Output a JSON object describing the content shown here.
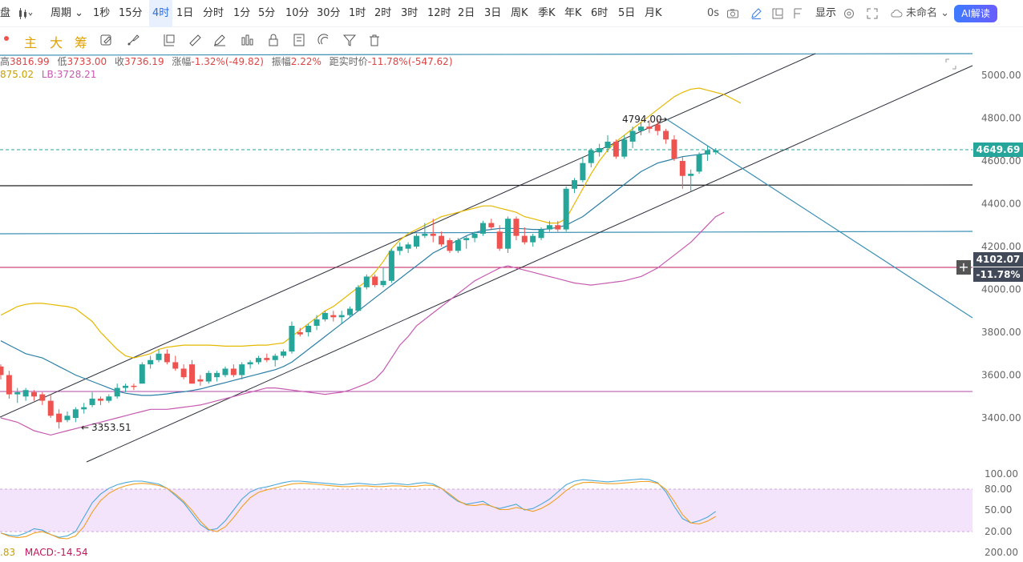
{
  "toolbar": {
    "left_partial": "盘",
    "period_label": "周期",
    "periods": [
      "1秒",
      "15分",
      "4时",
      "1日",
      "分时",
      "1分",
      "5分",
      "10分",
      "30分",
      "1时",
      "2时",
      "3时",
      "12时",
      "2日",
      "3日",
      "周K",
      "季K",
      "年K",
      "6时",
      "5日",
      "月K"
    ],
    "active_period": "4时",
    "latency": "0s",
    "display_label": "显示",
    "unnamed_label": "未命名",
    "ai_label": "AI解读"
  },
  "drawbar": {
    "main_chars": [
      "主",
      "大",
      "筹"
    ]
  },
  "ohlc": {
    "high_label": "高",
    "high": "3816.99",
    "low_label": "低",
    "low": "3733.00",
    "close_label": "收",
    "close": "3736.19",
    "change_label": "涨幅",
    "change": "-1.32%(-49.82)",
    "amplitude_label": "振幅",
    "amplitude": "2.22%",
    "dist_label": "距实时价",
    "dist": "-11.78%(-547.62)"
  },
  "boll": {
    "ub": "875.02",
    "lb": "LB:3728.21"
  },
  "macd": {
    "left": ".83",
    "value": "MACD:-14.54"
  },
  "annotations": {
    "high_mark": "4794.00",
    "low_mark": "3353.51"
  },
  "price_axis": {
    "ticks": [
      "5000.00",
      "4800.00",
      "4600.00",
      "4400.00",
      "4200.00",
      "4000.00",
      "3800.00",
      "3600.00",
      "3400.00"
    ],
    "current_price": "4649.69",
    "cursor_price": "4102.07",
    "cursor_pct": "-11.78%"
  },
  "indicator_axis": {
    "ticks": [
      "100.00",
      "80.00",
      "50.00",
      "20.00",
      "200.00"
    ]
  },
  "colors": {
    "up": "#26a69a",
    "down": "#ef5350",
    "ma_yellow": "#e6b800",
    "ma_blue": "#2b7fa6",
    "ma_pink": "#c65ab0",
    "channel": "#2b2e3a",
    "current_price_bg": "#26a69a",
    "cursor_bg": "#424a5a"
  },
  "chart_data": {
    "type": "candlestick",
    "price_range": [
      3300,
      5100
    ],
    "candles": [
      {
        "o": 3640,
        "h": 3650,
        "l": 3580,
        "c": 3600
      },
      {
        "o": 3600,
        "h": 3620,
        "l": 3490,
        "c": 3510
      },
      {
        "o": 3510,
        "h": 3540,
        "l": 3470,
        "c": 3520
      },
      {
        "o": 3500,
        "h": 3540,
        "l": 3480,
        "c": 3530
      },
      {
        "o": 3520,
        "h": 3530,
        "l": 3480,
        "c": 3500
      },
      {
        "o": 3510,
        "h": 3520,
        "l": 3460,
        "c": 3480
      },
      {
        "o": 3480,
        "h": 3510,
        "l": 3400,
        "c": 3410
      },
      {
        "o": 3420,
        "h": 3440,
        "l": 3350,
        "c": 3380
      },
      {
        "o": 3390,
        "h": 3430,
        "l": 3380,
        "c": 3410
      },
      {
        "o": 3400,
        "h": 3450,
        "l": 3380,
        "c": 3440
      },
      {
        "o": 3440,
        "h": 3470,
        "l": 3420,
        "c": 3450
      },
      {
        "o": 3460,
        "h": 3520,
        "l": 3450,
        "c": 3490
      },
      {
        "o": 3490,
        "h": 3500,
        "l": 3460,
        "c": 3480
      },
      {
        "o": 3480,
        "h": 3510,
        "l": 3470,
        "c": 3500
      },
      {
        "o": 3500,
        "h": 3560,
        "l": 3490,
        "c": 3540
      },
      {
        "o": 3540,
        "h": 3560,
        "l": 3520,
        "c": 3550
      },
      {
        "o": 3550,
        "h": 3560,
        "l": 3530,
        "c": 3545
      },
      {
        "o": 3560,
        "h": 3660,
        "l": 3560,
        "c": 3650
      },
      {
        "o": 3650,
        "h": 3690,
        "l": 3630,
        "c": 3670
      },
      {
        "o": 3670,
        "h": 3720,
        "l": 3660,
        "c": 3700
      },
      {
        "o": 3700,
        "h": 3720,
        "l": 3650,
        "c": 3660
      },
      {
        "o": 3660,
        "h": 3690,
        "l": 3620,
        "c": 3630
      },
      {
        "o": 3630,
        "h": 3650,
        "l": 3580,
        "c": 3590
      },
      {
        "o": 3650,
        "h": 3670,
        "l": 3560,
        "c": 3560
      },
      {
        "o": 3580,
        "h": 3600,
        "l": 3550,
        "c": 3570
      },
      {
        "o": 3570,
        "h": 3620,
        "l": 3560,
        "c": 3610
      },
      {
        "o": 3590,
        "h": 3620,
        "l": 3570,
        "c": 3610
      },
      {
        "o": 3600,
        "h": 3640,
        "l": 3590,
        "c": 3630
      },
      {
        "o": 3630,
        "h": 3650,
        "l": 3590,
        "c": 3600
      },
      {
        "o": 3600,
        "h": 3660,
        "l": 3580,
        "c": 3650
      },
      {
        "o": 3650,
        "h": 3670,
        "l": 3630,
        "c": 3660
      },
      {
        "o": 3660,
        "h": 3690,
        "l": 3650,
        "c": 3680
      },
      {
        "o": 3680,
        "h": 3700,
        "l": 3660,
        "c": 3670
      },
      {
        "o": 3670,
        "h": 3700,
        "l": 3640,
        "c": 3690
      },
      {
        "o": 3690,
        "h": 3720,
        "l": 3680,
        "c": 3710
      },
      {
        "o": 3710,
        "h": 3850,
        "l": 3700,
        "c": 3830
      },
      {
        "o": 3800,
        "h": 3820,
        "l": 3780,
        "c": 3790
      },
      {
        "o": 3800,
        "h": 3840,
        "l": 3780,
        "c": 3830
      },
      {
        "o": 3830,
        "h": 3880,
        "l": 3810,
        "c": 3860
      },
      {
        "o": 3860,
        "h": 3900,
        "l": 3850,
        "c": 3890
      },
      {
        "o": 3880,
        "h": 3900,
        "l": 3850,
        "c": 3870
      },
      {
        "o": 3870,
        "h": 3900,
        "l": 3840,
        "c": 3880
      },
      {
        "o": 3880,
        "h": 3920,
        "l": 3870,
        "c": 3910
      },
      {
        "o": 3900,
        "h": 4020,
        "l": 3900,
        "c": 4010
      },
      {
        "o": 4010,
        "h": 4070,
        "l": 4000,
        "c": 4060
      },
      {
        "o": 4060,
        "h": 4070,
        "l": 4010,
        "c": 4020
      },
      {
        "o": 4020,
        "h": 4100,
        "l": 4010,
        "c": 4040
      },
      {
        "o": 4040,
        "h": 4190,
        "l": 4030,
        "c": 4180
      },
      {
        "o": 4180,
        "h": 4220,
        "l": 4160,
        "c": 4200
      },
      {
        "o": 4190,
        "h": 4220,
        "l": 4170,
        "c": 4210
      },
      {
        "o": 4200,
        "h": 4260,
        "l": 4190,
        "c": 4250
      },
      {
        "o": 4250,
        "h": 4310,
        "l": 4240,
        "c": 4260
      },
      {
        "o": 4260,
        "h": 4330,
        "l": 4220,
        "c": 4250
      },
      {
        "o": 4250,
        "h": 4270,
        "l": 4200,
        "c": 4210
      },
      {
        "o": 4230,
        "h": 4240,
        "l": 4170,
        "c": 4180
      },
      {
        "o": 4180,
        "h": 4240,
        "l": 4170,
        "c": 4230
      },
      {
        "o": 4230,
        "h": 4250,
        "l": 4190,
        "c": 4240
      },
      {
        "o": 4240,
        "h": 4270,
        "l": 4220,
        "c": 4260
      },
      {
        "o": 4260,
        "h": 4320,
        "l": 4250,
        "c": 4310
      },
      {
        "o": 4310,
        "h": 4330,
        "l": 4280,
        "c": 4290
      },
      {
        "o": 4270,
        "h": 4300,
        "l": 4180,
        "c": 4190
      },
      {
        "o": 4190,
        "h": 4340,
        "l": 4170,
        "c": 4330
      },
      {
        "o": 4330,
        "h": 4340,
        "l": 4230,
        "c": 4250
      },
      {
        "o": 4250,
        "h": 4290,
        "l": 4210,
        "c": 4220
      },
      {
        "o": 4220,
        "h": 4260,
        "l": 4200,
        "c": 4250
      },
      {
        "o": 4240,
        "h": 4290,
        "l": 4230,
        "c": 4280
      },
      {
        "o": 4280,
        "h": 4320,
        "l": 4270,
        "c": 4300
      },
      {
        "o": 4300,
        "h": 4320,
        "l": 4270,
        "c": 4280
      },
      {
        "o": 4280,
        "h": 4480,
        "l": 4270,
        "c": 4470
      },
      {
        "o": 4470,
        "h": 4520,
        "l": 4450,
        "c": 4510
      },
      {
        "o": 4510,
        "h": 4620,
        "l": 4500,
        "c": 4590
      },
      {
        "o": 4590,
        "h": 4660,
        "l": 4570,
        "c": 4650
      },
      {
        "o": 4640,
        "h": 4680,
        "l": 4620,
        "c": 4660
      },
      {
        "o": 4660,
        "h": 4720,
        "l": 4640,
        "c": 4690
      },
      {
        "o": 4690,
        "h": 4700,
        "l": 4610,
        "c": 4620
      },
      {
        "o": 4620,
        "h": 4720,
        "l": 4610,
        "c": 4700
      },
      {
        "o": 4690,
        "h": 4760,
        "l": 4660,
        "c": 4740
      },
      {
        "o": 4740,
        "h": 4780,
        "l": 4720,
        "c": 4760
      },
      {
        "o": 4760,
        "h": 4790,
        "l": 4730,
        "c": 4750
      },
      {
        "o": 4770,
        "h": 4794,
        "l": 4720,
        "c": 4740
      },
      {
        "o": 4740,
        "h": 4750,
        "l": 4680,
        "c": 4700
      },
      {
        "o": 4700,
        "h": 4720,
        "l": 4600,
        "c": 4610
      },
      {
        "o": 4600,
        "h": 4620,
        "l": 4470,
        "c": 4530
      },
      {
        "o": 4530,
        "h": 4560,
        "l": 4460,
        "c": 4540
      },
      {
        "o": 4550,
        "h": 4640,
        "l": 4540,
        "c": 4630
      },
      {
        "o": 4630,
        "h": 4670,
        "l": 4600,
        "c": 4650
      },
      {
        "o": 4640,
        "h": 4660,
        "l": 4630,
        "c": 4650
      }
    ],
    "ma_yellow": [
      3880,
      3900,
      3920,
      3930,
      3935,
      3935,
      3930,
      3925,
      3920,
      3910,
      3880,
      3850,
      3800,
      3760,
      3720,
      3690,
      3680,
      3690,
      3700,
      3720,
      3730,
      3735,
      3740,
      3740,
      3740,
      3740,
      3738,
      3735,
      3735,
      3735,
      3738,
      3740,
      3740,
      3745,
      3750,
      3780,
      3810,
      3840,
      3870,
      3900,
      3920,
      3950,
      3980,
      4010,
      4040,
      4080,
      4130,
      4190,
      4230,
      4260,
      4280,
      4300,
      4320,
      4340,
      4350,
      4360,
      4370,
      4380,
      4390,
      4390,
      4380,
      4370,
      4360,
      4340,
      4330,
      4320,
      4310,
      4310,
      4330,
      4400,
      4470,
      4540,
      4600,
      4650,
      4690,
      4720,
      4750,
      4780,
      4810,
      4840,
      4870,
      4900,
      4920,
      4935,
      4940,
      4930,
      4920,
      4910,
      4890,
      4870
    ],
    "ma_blue": [
      3760,
      3740,
      3720,
      3700,
      3690,
      3680,
      3660,
      3640,
      3620,
      3600,
      3585,
      3570,
      3555,
      3540,
      3525,
      3515,
      3510,
      3505,
      3505,
      3508,
      3512,
      3518,
      3522,
      3528,
      3535,
      3545,
      3555,
      3565,
      3575,
      3585,
      3595,
      3605,
      3615,
      3625,
      3640,
      3660,
      3690,
      3720,
      3750,
      3780,
      3810,
      3840,
      3870,
      3900,
      3930,
      3960,
      3990,
      4020,
      4050,
      4080,
      4110,
      4140,
      4170,
      4190,
      4210,
      4230,
      4250,
      4265,
      4275,
      4280,
      4285,
      4285,
      4285,
      4283,
      4280,
      4280,
      4283,
      4290,
      4300,
      4320,
      4340,
      4370,
      4400,
      4430,
      4460,
      4490,
      4520,
      4550,
      4570,
      4590,
      4600,
      4610,
      4620,
      4625,
      4630,
      4635
    ],
    "ma_pink": [
      3400,
      3390,
      3380,
      3360,
      3340,
      3330,
      3320,
      3330,
      3340,
      3350,
      3360,
      3370,
      3380,
      3390,
      3400,
      3410,
      3420,
      3430,
      3440,
      3440,
      3440,
      3445,
      3450,
      3455,
      3460,
      3470,
      3480,
      3490,
      3500,
      3510,
      3520,
      3530,
      3540,
      3540,
      3535,
      3530,
      3525,
      3520,
      3515,
      3510,
      3515,
      3520,
      3530,
      3545,
      3560,
      3580,
      3620,
      3680,
      3740,
      3780,
      3830,
      3860,
      3890,
      3920,
      3950,
      3980,
      4010,
      4040,
      4060,
      4080,
      4100,
      4110,
      4100,
      4090,
      4080,
      4070,
      4060,
      4050,
      4040,
      4030,
      4025,
      4020,
      4025,
      4030,
      4035,
      4040,
      4050,
      4060,
      4080,
      4100,
      4130,
      4160,
      4190,
      4220,
      4260,
      4300,
      4340,
      4360
    ]
  }
}
